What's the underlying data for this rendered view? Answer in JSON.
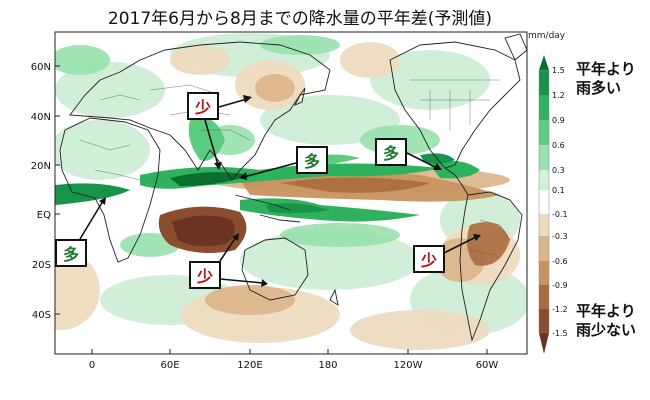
{
  "title": "2017年6月から8月までの降水量の平年差(予測値)",
  "map": {
    "lat_ticks": [
      "60N",
      "40N",
      "20N",
      "EQ",
      "20S",
      "40S"
    ],
    "lon_ticks": [
      "0",
      "60E",
      "120E",
      "180",
      "120W",
      "60W"
    ]
  },
  "colorbar": {
    "unit": "mm/day",
    "labels": [
      "1.5",
      "1.2",
      "0.9",
      "0.6",
      "0.3",
      "0.1",
      "-0.1",
      "-0.3",
      "-0.6",
      "-0.9",
      "-1.2",
      "-1.5"
    ],
    "colors": {
      "wet": [
        "#0a6e2e",
        "#17944a",
        "#2fb25d",
        "#5ccc80",
        "#98e2ad",
        "#d0f2da"
      ],
      "neutral": "#ffffff",
      "dry": [
        "#efdcc0",
        "#dcb58a",
        "#c8935f",
        "#a96c3e",
        "#8a4e2e",
        "#6b3324"
      ]
    },
    "wet_label_line1": "平年より",
    "wet_label_line2": "雨多い",
    "dry_label_line1": "平年より",
    "dry_label_line2": "雨少ない"
  },
  "annotations": [
    {
      "text": "少",
      "color": "#b01818"
    },
    {
      "text": "多",
      "color": "#1d7a2c"
    },
    {
      "text": "多",
      "color": "#1d7a2c"
    },
    {
      "text": "多",
      "color": "#1d7a2c"
    },
    {
      "text": "少",
      "color": "#b01818"
    },
    {
      "text": "少",
      "color": "#b01818"
    }
  ]
}
